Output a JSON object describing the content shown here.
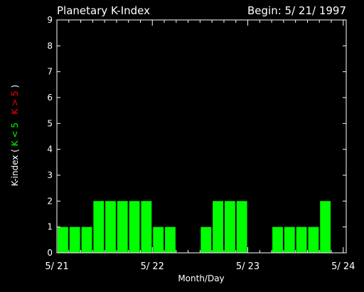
{
  "chart_data": {
    "type": "bar",
    "title": "Planetary K-Index",
    "subtitle": "Begin: 5/ 21/ 1997",
    "xlabel": "Month/Day",
    "ylabel_parts": {
      "prefix": "K-index",
      "open": "(",
      "green": "K < 5",
      "red": "K > 5",
      "close": ")"
    },
    "ylim": [
      0,
      9
    ],
    "yticks": [
      "0",
      "1",
      "2",
      "3",
      "4",
      "5",
      "6",
      "7",
      "8",
      "9"
    ],
    "xticks": [
      "5/ 21",
      "5/ 22",
      "5/ 23",
      "5/ 24"
    ],
    "bins_per_day": 8,
    "days": 3,
    "values": [
      1,
      1,
      1,
      2,
      2,
      2,
      2,
      2,
      1,
      1,
      0,
      0,
      1,
      2,
      2,
      2,
      0,
      0,
      1,
      1,
      1,
      1,
      2,
      0
    ],
    "colors": {
      "low": "#00ff00",
      "high": "#ff0000",
      "axes": "#ffffff",
      "background": "#000000"
    }
  }
}
